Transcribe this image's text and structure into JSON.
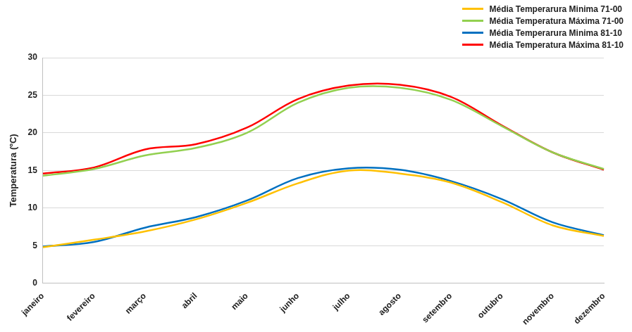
{
  "chart_data": {
    "type": "line",
    "y_label": "Temperatura (ºC)",
    "categories": [
      "janeiro",
      "fevereiro",
      "março",
      "abril",
      "maio",
      "junho",
      "julho",
      "agosto",
      "setembro",
      "outubro",
      "novembro",
      "dezembro"
    ],
    "series": [
      {
        "name": "Média Temperarura Minima 71-00",
        "color": "#ffc000",
        "values": [
          4.8,
          5.8,
          6.9,
          8.5,
          10.7,
          13.3,
          15.0,
          14.6,
          13.4,
          10.8,
          7.7,
          6.3
        ]
      },
      {
        "name": "Média Temperatura Máxima 71-00",
        "color": "#92d050",
        "values": [
          14.3,
          15.2,
          17.0,
          18.0,
          20.0,
          24.0,
          26.0,
          26.0,
          24.4,
          20.9,
          17.4,
          15.2
        ]
      },
      {
        "name": "Média Temperarura Minima 81-10",
        "color": "#0070c0",
        "values": [
          4.9,
          5.5,
          7.4,
          8.8,
          11.0,
          14.0,
          15.3,
          15.1,
          13.6,
          11.2,
          8.1,
          6.4
        ]
      },
      {
        "name": "Média Temperatura Máxima 81-10",
        "color": "#ff0000",
        "values": [
          14.6,
          15.4,
          17.8,
          18.5,
          20.7,
          24.5,
          26.3,
          26.4,
          24.8,
          21.0,
          17.4,
          15.1
        ]
      }
    ],
    "ylim": [
      0,
      30
    ],
    "yticks": [
      0,
      5,
      10,
      15,
      20,
      25,
      30
    ],
    "grid": true,
    "legend": "top-right"
  }
}
